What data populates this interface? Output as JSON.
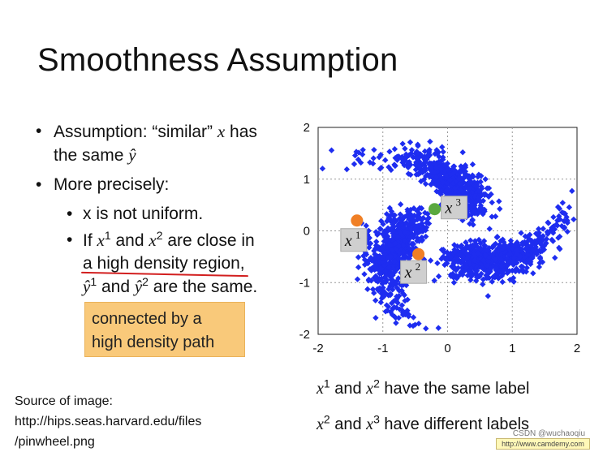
{
  "slide": {
    "title": "Smoothness Assumption",
    "bullets": {
      "b1_prefix": "Assumption: “similar” ",
      "b1_var_x": "x",
      "b1_suffix": " has",
      "b1_line2_prefix": "the same ",
      "b1_var_yhat": "ŷ",
      "b2": "More precisely:",
      "s1": "x is not uniform.",
      "s2_if": "If ",
      "s2_x": "x",
      "s2_sup1": "1",
      "s2_and": " and ",
      "s2_x2": "x",
      "s2_sup2": "2",
      "s2_close": " are close in",
      "s2_region": "a high density region,",
      "s2_y": "ŷ",
      "s2_ysup1": "1",
      "s2_and2": " and ",
      "s2_y2": "ŷ",
      "s2_ysup2": "2",
      "s2_same": " are the same."
    },
    "callout": {
      "line1": "connected by a",
      "line2": "high density path"
    },
    "source": {
      "line1": "Source of image:",
      "line2": "http://hips.seas.harvard.edu/files",
      "line3": "/pinwheel.png"
    },
    "captions": {
      "c1_x": "x",
      "c1_sup1": "1",
      "c1_and": " and ",
      "c1_x2": "x",
      "c1_sup2": "2",
      "c1_rest": " have the same label",
      "c2_x": "x",
      "c2_sup1": "2",
      "c2_and": " and ",
      "c2_x2": "x",
      "c2_sup2": "3",
      "c2_rest": " have different labels"
    },
    "watermark": "CSDN @wuchaoqiu",
    "camdemy": "http://www.camdemy.com"
  },
  "chart_data": {
    "type": "scatter",
    "xlim": [
      -2,
      2
    ],
    "ylim": [
      -2,
      2
    ],
    "xticks": [
      "-2",
      "-1",
      "0",
      "1",
      "2"
    ],
    "yticks": [
      "2",
      "1",
      "0",
      "-1",
      "-2"
    ],
    "grid": true,
    "point_color": "#1e2df0",
    "points": [
      {
        "name": "x1",
        "label": "x",
        "sup": "1",
        "x": -1.4,
        "y": 0.2,
        "color": "#f07f25"
      },
      {
        "name": "x2",
        "label": "x",
        "sup": "2",
        "x": -0.45,
        "y": -0.45,
        "color": "#f07f25"
      },
      {
        "name": "x3",
        "label": "x",
        "sup": "3",
        "x": -0.2,
        "y": 0.42,
        "color": "#5aa83f"
      }
    ]
  }
}
